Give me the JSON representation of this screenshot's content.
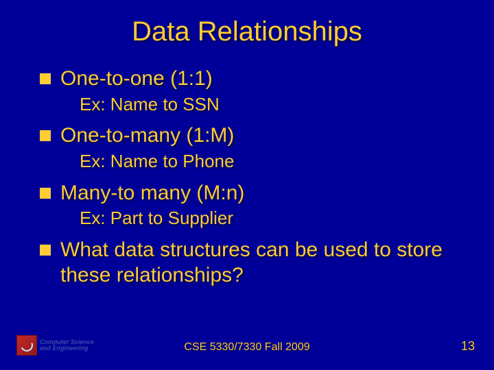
{
  "slide": {
    "title": "Data Relationships",
    "items": [
      {
        "main": "One-to-one (1:1)",
        "sub": "Ex: Name to SSN"
      },
      {
        "main": "One-to-many (1:M)",
        "sub": "Ex: Name to Phone"
      },
      {
        "main": "Many-to many (M:n)",
        "sub": "Ex: Part to Supplier"
      },
      {
        "main": "What data structures can be used to store these relationships?",
        "sub": null
      }
    ],
    "footer": {
      "logo_line1": "Computer Science",
      "logo_line2": "and Engineering",
      "center": "CSE 5330/7330 Fall 2009",
      "page": "13"
    },
    "colors": {
      "background": "#000099",
      "text": "#ffcc33",
      "bullet": "#ffcc33"
    },
    "typography": {
      "title_fontsize": 40,
      "bullet_fontsize": 30,
      "sub_fontsize": 26,
      "footer_fontsize": 16
    }
  }
}
